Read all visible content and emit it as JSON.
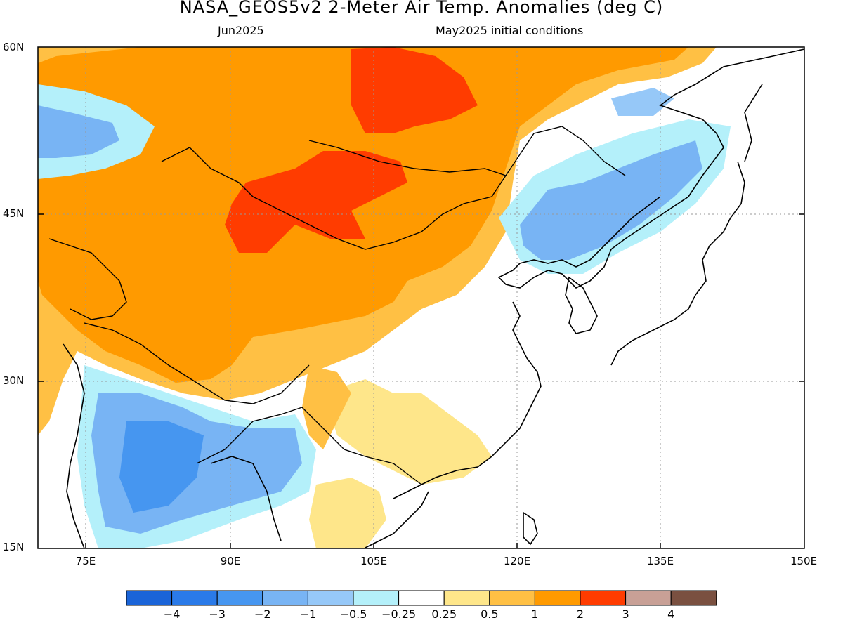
{
  "title": "NASA_GEOS5v2 2-Meter Air Temp. Anomalies (deg C)",
  "subtitle_left": "Jun2025",
  "subtitle_right": "May2025 initial conditions",
  "lat_labels": [
    "60N",
    "45N",
    "30N",
    "15N"
  ],
  "lon_labels": [
    "75E",
    "90E",
    "105E",
    "120E",
    "135E",
    "150E"
  ],
  "colorbar": {
    "colors": [
      "#1a64d8",
      "#2a7ae8",
      "#4696f0",
      "#78b4f4",
      "#96c8f8",
      "#b4f0fa",
      "#ffffff",
      "#fee68a",
      "#ffc044",
      "#ff9a00",
      "#ff3c00",
      "#c8a096",
      "#7a5040"
    ],
    "labels": [
      "-4",
      "-3",
      "-2",
      "-1",
      "-0.5",
      "-0.25",
      "0.25",
      "0.5",
      "1",
      "2",
      "3",
      "4"
    ]
  },
  "map_data": {
    "lat_range": [
      15,
      60
    ],
    "lon_range": [
      70,
      150
    ],
    "variable": "2-Meter Air Temp. Anomalies",
    "units": "deg C"
  }
}
